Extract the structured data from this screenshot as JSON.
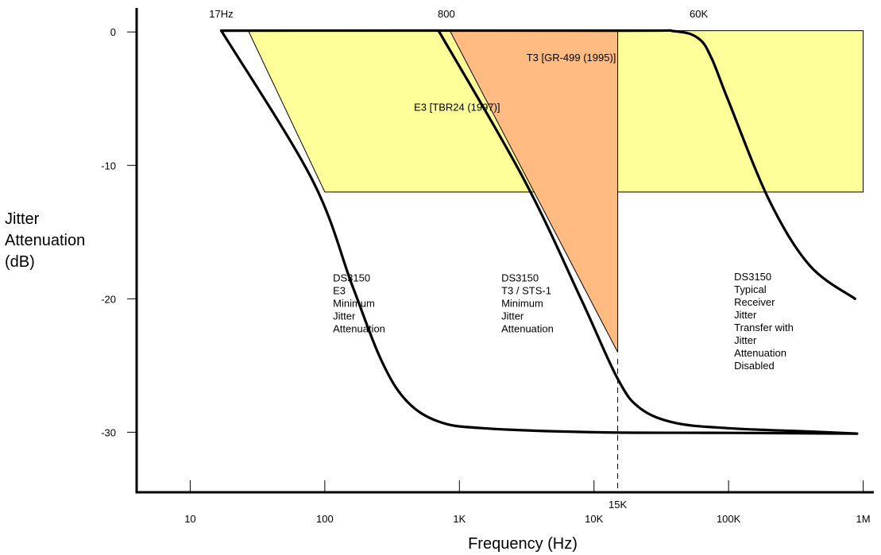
{
  "chart_data": {
    "type": "line",
    "x_scale": "log",
    "xlabel": "Frequency (Hz)",
    "ylabel_lines": [
      "Jitter",
      "Attenuation",
      "(dB)"
    ],
    "xlim": [
      4,
      1200000
    ],
    "ylim": [
      -34.5,
      1.8
    ],
    "x_ticks": [
      {
        "value": 10,
        "label": "10"
      },
      {
        "value": 100,
        "label": "100"
      },
      {
        "value": 1000,
        "label": "1K"
      },
      {
        "value": 10000,
        "label": "10K"
      },
      {
        "value": 100000,
        "label": "100K"
      },
      {
        "value": 1000000,
        "label": "1M"
      }
    ],
    "y_ticks": [
      {
        "value": 0,
        "label": "0"
      },
      {
        "value": -10,
        "label": "-10"
      },
      {
        "value": -20,
        "label": "-20"
      },
      {
        "value": -30,
        "label": "-30"
      }
    ],
    "top_labels": [
      {
        "x": 17,
        "label": "17Hz"
      },
      {
        "x": 800,
        "label": "800"
      },
      {
        "x": 60000,
        "label": "60K"
      }
    ],
    "marker": {
      "x": 15000,
      "label": "15K",
      "y_from": -24.5,
      "y_to": -34.5
    },
    "regions": [
      {
        "name": "E3 [TBR24 (1997)]",
        "color": "#ffff99",
        "points": [
          [
            27,
            0.1
          ],
          [
            1000000,
            0.1
          ],
          [
            1000000,
            -12
          ],
          [
            100,
            -12
          ]
        ],
        "label_at": [
          460,
          -5.9
        ]
      },
      {
        "name": "T3 [GR-499 (1995)]",
        "color": "#ffbb80",
        "points": [
          [
            850,
            0.1
          ],
          [
            15000,
            0.1
          ],
          [
            15000,
            -24
          ]
        ],
        "label_at": [
          3150,
          -2.2
        ]
      }
    ],
    "series": [
      {
        "name_lines": [
          "DS3150",
          "E3",
          "Minimum",
          "Jitter",
          "Attenuation"
        ],
        "label_at": [
          115,
          -18.7
        ],
        "points": [
          [
            17,
            0.1
          ],
          [
            80,
            -11
          ],
          [
            160,
            -19
          ],
          [
            260,
            -24.5
          ],
          [
            400,
            -27.6
          ],
          [
            700,
            -29.2
          ],
          [
            1500,
            -29.7
          ],
          [
            10000,
            -30
          ],
          [
            100000,
            -30.05
          ],
          [
            900000,
            -30.1
          ]
        ]
      },
      {
        "name_lines": [
          "DS3150",
          "T3 / STS-1",
          "Minimum",
          "Jitter",
          "Attenuation"
        ],
        "label_at": [
          2050,
          -18.7
        ],
        "points": [
          [
            700,
            0.1
          ],
          [
            3000,
            -11
          ],
          [
            8000,
            -20
          ],
          [
            15000,
            -26
          ],
          [
            22000,
            -28.2
          ],
          [
            40000,
            -29.3
          ],
          [
            100000,
            -29.7
          ],
          [
            400000,
            -29.95
          ],
          [
            900000,
            -30.1
          ]
        ]
      },
      {
        "name_lines": [
          "DS3150",
          "Typical",
          "Receiver",
          "Jitter",
          "Transfer with",
          "Jitter",
          "Attenuation",
          "Disabled"
        ],
        "label_at": [
          110000,
          -18.6
        ],
        "points": [
          [
            17,
            0.1
          ],
          [
            15000,
            0.1
          ],
          [
            40000,
            0.05
          ],
          [
            60000,
            -0.5
          ],
          [
            75000,
            -2
          ],
          [
            100000,
            -5.2
          ],
          [
            200000,
            -12.6
          ],
          [
            400000,
            -17.5
          ],
          [
            870000,
            -20
          ]
        ]
      }
    ]
  }
}
